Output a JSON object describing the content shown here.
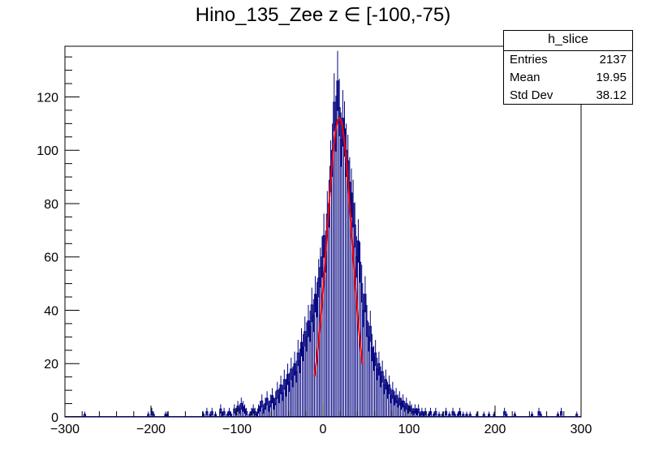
{
  "title": "Hino_135_Zee z  ∈ [-100,-75)",
  "stats": {
    "name": "h_slice",
    "rows": [
      {
        "label": "Entries",
        "value": "2137"
      },
      {
        "label": "Mean",
        "value": "19.95"
      },
      {
        "label": "Std Dev",
        "value": "38.12"
      }
    ]
  },
  "colors": {
    "histogram": "#00007f",
    "fit": "#ff0000",
    "axis": "#000000"
  },
  "chart_data": {
    "type": "histogram",
    "title": "Hino_135_Zee z  ∈ [-100,-75)",
    "xlabel": "",
    "ylabel": "",
    "xlim": [
      -300,
      300
    ],
    "ylim": [
      0,
      139
    ],
    "x_ticks": [
      -300,
      -200,
      -100,
      0,
      100,
      200,
      300
    ],
    "y_ticks": [
      0,
      20,
      40,
      60,
      80,
      100,
      120
    ],
    "bin_width": 2,
    "bins": [
      [
        -278,
        1
      ],
      [
        -204,
        1
      ],
      [
        -200,
        2
      ],
      [
        -198,
        1
      ],
      [
        -184,
        1
      ],
      [
        -182,
        1
      ],
      [
        -140,
        1
      ],
      [
        -136,
        2
      ],
      [
        -132,
        1
      ],
      [
        -130,
        2
      ],
      [
        -126,
        1
      ],
      [
        -120,
        3
      ],
      [
        -118,
        1
      ],
      [
        -116,
        2
      ],
      [
        -112,
        1
      ],
      [
        -110,
        2
      ],
      [
        -108,
        1
      ],
      [
        -104,
        3
      ],
      [
        -102,
        2
      ],
      [
        -100,
        4
      ],
      [
        -98,
        3
      ],
      [
        -96,
        5
      ],
      [
        -94,
        4
      ],
      [
        -92,
        3
      ],
      [
        -90,
        2
      ],
      [
        -86,
        1
      ],
      [
        -84,
        2
      ],
      [
        -82,
        3
      ],
      [
        -80,
        2
      ],
      [
        -78,
        1
      ],
      [
        -76,
        3
      ],
      [
        -74,
        4
      ],
      [
        -72,
        6
      ],
      [
        -70,
        3
      ],
      [
        -68,
        5
      ],
      [
        -66,
        7
      ],
      [
        -64,
        4
      ],
      [
        -62,
        6
      ],
      [
        -60,
        8
      ],
      [
        -58,
        5
      ],
      [
        -56,
        7
      ],
      [
        -54,
        10
      ],
      [
        -52,
        8
      ],
      [
        -50,
        12
      ],
      [
        -48,
        9
      ],
      [
        -46,
        14
      ],
      [
        -44,
        11
      ],
      [
        -42,
        16
      ],
      [
        -40,
        13
      ],
      [
        -38,
        18
      ],
      [
        -36,
        15
      ],
      [
        -34,
        20
      ],
      [
        -32,
        17
      ],
      [
        -30,
        24
      ],
      [
        -28,
        21
      ],
      [
        -26,
        28
      ],
      [
        -24,
        26
      ],
      [
        -22,
        32
      ],
      [
        -20,
        30
      ],
      [
        -18,
        36
      ],
      [
        -16,
        34
      ],
      [
        -14,
        42
      ],
      [
        -12,
        38
      ],
      [
        -10,
        46
      ],
      [
        -8,
        44
      ],
      [
        -6,
        52
      ],
      [
        -4,
        56
      ],
      [
        -2,
        60
      ],
      [
        0,
        68
      ],
      [
        2,
        62
      ],
      [
        4,
        76
      ],
      [
        6,
        80
      ],
      [
        8,
        94
      ],
      [
        10,
        100
      ],
      [
        12,
        118
      ],
      [
        14,
        110
      ],
      [
        16,
        126
      ],
      [
        18,
        116
      ],
      [
        20,
        104
      ],
      [
        22,
        112
      ],
      [
        24,
        108
      ],
      [
        26,
        100
      ],
      [
        28,
        96
      ],
      [
        30,
        88
      ],
      [
        32,
        84
      ],
      [
        34,
        80
      ],
      [
        36,
        72
      ],
      [
        38,
        60
      ],
      [
        40,
        66
      ],
      [
        42,
        58
      ],
      [
        44,
        50
      ],
      [
        46,
        40
      ],
      [
        48,
        46
      ],
      [
        50,
        36
      ],
      [
        52,
        30
      ],
      [
        54,
        34
      ],
      [
        56,
        26
      ],
      [
        58,
        22
      ],
      [
        60,
        24
      ],
      [
        62,
        18
      ],
      [
        64,
        20
      ],
      [
        66,
        15
      ],
      [
        68,
        17
      ],
      [
        70,
        12
      ],
      [
        72,
        14
      ],
      [
        74,
        10
      ],
      [
        76,
        12
      ],
      [
        78,
        8
      ],
      [
        80,
        10
      ],
      [
        82,
        7
      ],
      [
        84,
        8
      ],
      [
        86,
        6
      ],
      [
        88,
        7
      ],
      [
        90,
        5
      ],
      [
        92,
        6
      ],
      [
        94,
        4
      ],
      [
        96,
        5
      ],
      [
        98,
        3
      ],
      [
        100,
        4
      ],
      [
        102,
        3
      ],
      [
        104,
        2
      ],
      [
        106,
        3
      ],
      [
        108,
        2
      ],
      [
        110,
        3
      ],
      [
        112,
        1
      ],
      [
        114,
        2
      ],
      [
        116,
        1
      ],
      [
        118,
        2
      ],
      [
        122,
        1
      ],
      [
        124,
        2
      ],
      [
        128,
        1
      ],
      [
        130,
        2
      ],
      [
        134,
        1
      ],
      [
        138,
        1
      ],
      [
        142,
        2
      ],
      [
        146,
        1
      ],
      [
        150,
        2
      ],
      [
        152,
        1
      ],
      [
        156,
        1
      ],
      [
        158,
        2
      ],
      [
        162,
        1
      ],
      [
        166,
        1
      ],
      [
        170,
        1
      ],
      [
        178,
        1
      ],
      [
        186,
        1
      ],
      [
        192,
        1
      ],
      [
        198,
        1
      ],
      [
        210,
        2
      ],
      [
        212,
        1
      ],
      [
        222,
        1
      ],
      [
        242,
        1
      ],
      [
        250,
        2
      ],
      [
        252,
        1
      ],
      [
        272,
        1
      ],
      [
        276,
        2
      ],
      [
        294,
        1
      ]
    ],
    "fit": {
      "type": "gaussian",
      "constant": 112,
      "mean": 19,
      "sigma": 14.5,
      "range": [
        -10,
        46
      ]
    }
  }
}
